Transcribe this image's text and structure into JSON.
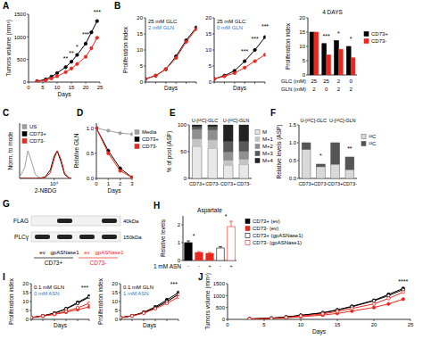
{
  "chart_data": [
    {
      "panel": "A",
      "type": "line",
      "xlabel": "Days",
      "ylabel": "Tumors volume (mm³)",
      "xlim": [
        0,
        25
      ],
      "xticks": [
        0,
        5,
        10,
        15,
        20,
        25
      ],
      "ylim": [
        0,
        1500
      ],
      "yticks": [
        0,
        500,
        1000,
        1500
      ],
      "x": [
        3,
        6,
        8,
        10,
        13,
        15,
        17,
        20,
        22,
        24
      ],
      "series": [
        {
          "color": "#000000",
          "marker": "circle",
          "values": [
            20,
            60,
            120,
            200,
            330,
            450,
            600,
            850,
            1100,
            1350
          ]
        },
        {
          "color": "#e8281e",
          "marker": "circle",
          "values": [
            15,
            40,
            80,
            130,
            220,
            300,
            400,
            560,
            750,
            980
          ]
        }
      ],
      "annotations": [
        {
          "text": "**",
          "x": 13,
          "y": 450
        },
        {
          "text": "**",
          "x": 15,
          "y": 580
        },
        {
          "text": "*",
          "x": 17,
          "y": 720
        },
        {
          "text": "***",
          "x": 20,
          "y": 980
        },
        {
          "text": "***",
          "x": 24,
          "y": 1480
        }
      ]
    },
    {
      "panel": "B",
      "type": "line",
      "xlabel": "Days",
      "ylabel": "Proliferation index",
      "xlim": [
        0,
        5
      ],
      "xticks": [
        0,
        1,
        2,
        3,
        4,
        5
      ],
      "ylim": [
        0,
        20
      ],
      "yticks": [
        0,
        5,
        10,
        15,
        20
      ],
      "tick_labels": "y",
      "x": [
        0,
        1,
        2,
        3,
        4,
        5
      ],
      "subtitle": [
        {
          "text": "25 mM GLC",
          "color": "#000000"
        },
        {
          "text": "2 mM GLN",
          "color": "#1f77d0"
        }
      ],
      "series": [
        {
          "color": "#000000",
          "marker": "circle",
          "values": [
            1,
            2,
            4,
            8,
            13,
            17
          ]
        },
        {
          "color": "#e8281e",
          "marker": "circle",
          "values": [
            1,
            2,
            4,
            7.5,
            12.5,
            16.5
          ]
        }
      ]
    },
    {
      "type": "line",
      "xlabel": "Days",
      "xlim": [
        0,
        5
      ],
      "xticks": [
        0,
        1,
        2,
        3,
        4,
        5
      ],
      "ylim": [
        0,
        20
      ],
      "yticks": [
        0,
        5,
        10,
        15,
        20
      ],
      "tick_labels": "y",
      "x": [
        0,
        1,
        2,
        3,
        4,
        5
      ],
      "subtitle": [
        {
          "text": "25 mM GLC",
          "color": "#000000"
        },
        {
          "text": "0 mM GLN",
          "color": "#1f77d0"
        }
      ],
      "series": [
        {
          "color": "#000000",
          "marker": "circle",
          "values": [
            1,
            2,
            3.5,
            6.5,
            10,
            14
          ]
        },
        {
          "color": "#e8281e",
          "marker": "circle",
          "values": [
            1,
            1.8,
            2.8,
            4.5,
            6.5,
            8.5
          ]
        }
      ],
      "annotations": [
        {
          "text": "***",
          "x": 3,
          "y": 8.5
        },
        {
          "text": "***",
          "x": 4,
          "y": 12.5
        },
        {
          "text": "***",
          "x": 5,
          "y": 16.5
        }
      ]
    },
    {
      "type": "bar",
      "title": "4 DAYS",
      "ylabel": "Proliferation index",
      "ylim": [
        0,
        20
      ],
      "yticks": [
        0,
        5,
        10,
        15,
        20
      ],
      "legend": "right",
      "x_rows": [
        {
          "label": "GLC (mM)",
          "values": [
            "25",
            "25",
            "2",
            "0"
          ]
        },
        {
          "label": "GLN (mM)",
          "values": [
            "2",
            "0",
            "2",
            "2"
          ]
        }
      ],
      "series": [
        {
          "name": "CD73+",
          "color": "#000000",
          "values": [
            15,
            11,
            12,
            10
          ]
        },
        {
          "name": "CD73-",
          "color": "#e8281e",
          "values": [
            15,
            7,
            9,
            6
          ]
        }
      ],
      "annotations": [
        {
          "text": "***",
          "x": 1,
          "y": 12.5
        },
        {
          "text": "*",
          "x": 2,
          "y": 13.5
        },
        {
          "text": "*",
          "x": 3,
          "y": 11.5
        }
      ]
    },
    {
      "panel": "C",
      "type": "line",
      "xlabel": "2-NBDG",
      "ylabel": "Norm. to mode",
      "log": "x",
      "xlim": [
        100,
        100000
      ],
      "xticks": [
        {
          "value": 10000,
          "label": "10⁴"
        }
      ],
      "ylim": [
        0,
        200
      ],
      "tick_labels": "x",
      "legend": "upper left",
      "x": [
        100,
        200,
        300,
        500,
        800,
        1500,
        3000,
        6000,
        10000,
        15000,
        25000,
        40000,
        70000,
        100000
      ],
      "series": [
        {
          "name": "US",
          "color": "#9e9e9e",
          "values": [
            5,
            40,
            100,
            60,
            15,
            2,
            0,
            0,
            0,
            0,
            0,
            0,
            0,
            0
          ]
        },
        {
          "name": "CD73+",
          "color": "#000000",
          "values": [
            0,
            0,
            0,
            0,
            0,
            1,
            5,
            30,
            80,
            100,
            60,
            15,
            2,
            0
          ]
        },
        {
          "name": "CD73-",
          "color": "#e8281e",
          "values": [
            0,
            0,
            0,
            0,
            0,
            0,
            3,
            20,
            70,
            100,
            70,
            20,
            3,
            0
          ]
        }
      ]
    },
    {
      "panel": "D",
      "type": "line",
      "xlabel": "Days",
      "ylabel": "Relative GLN",
      "xlim": [
        0,
        3
      ],
      "xticks": [
        0,
        1,
        2,
        3
      ],
      "ylim": [
        0,
        1.1
      ],
      "yticks": [
        {
          "value": 0,
          "label": "0.0"
        },
        {
          "value": 0.5,
          "label": "0.5"
        },
        {
          "value": 1,
          "label": "1.0"
        }
      ],
      "legend": "right",
      "x": [
        0,
        1,
        2,
        3
      ],
      "series": [
        {
          "name": "Media",
          "color": "#9e9e9e",
          "marker": "circle",
          "values": [
            1,
            0.95,
            0.9,
            0.88
          ]
        },
        {
          "name": "CD73+",
          "color": "#000000",
          "marker": "circle",
          "values": [
            1,
            0.55,
            0.2,
            0.02
          ]
        },
        {
          "name": "CD73-",
          "color": "#e8281e",
          "marker": "circle",
          "values": [
            1,
            0.5,
            0.15,
            0.02
          ]
        }
      ]
    },
    {
      "panel": "E",
      "type": "bar",
      "stacked": true,
      "ylabel": "% of pool (ASP)",
      "ylim": [
        0,
        100
      ],
      "yticks": [
        0,
        50,
        100
      ],
      "categories": [
        "CD73+",
        "CD73-",
        "CD73+",
        "CD73-"
      ],
      "groups": [
        "U-[¹³C]-GLC",
        "U-[¹³C]-GLN"
      ],
      "legend": "right",
      "series": [
        {
          "name": "M",
          "color": "#e8e8e8",
          "values": [
            60,
            56,
            24,
            26
          ]
        },
        {
          "name": "M+1",
          "color": "#c4c4c4",
          "values": [
            14,
            16,
            10,
            10
          ]
        },
        {
          "name": "M+2",
          "color": "#8f8f8f",
          "values": [
            18,
            19,
            16,
            15
          ]
        },
        {
          "name": "M+3",
          "color": "#585858",
          "values": [
            5,
            6,
            20,
            19
          ]
        },
        {
          "name": "M+4",
          "color": "#222222",
          "values": [
            3,
            3,
            30,
            30
          ]
        }
      ]
    },
    {
      "panel": "F",
      "type": "bar",
      "stacked": true,
      "ylabel": "Relative levels (ASP)",
      "ylim": [
        0,
        1.5
      ],
      "yticks": [
        {
          "value": 0,
          "label": "0.0"
        },
        {
          "value": 0.5,
          "label": "0.5"
        },
        {
          "value": 1,
          "label": "1.0"
        },
        {
          "value": 1.5,
          "label": "1.5"
        }
      ],
      "categories": [
        "CD73+",
        "CD73-",
        "CD73+",
        "CD73-"
      ],
      "groups": [
        "U-[¹³C]-GLC",
        "U-[¹³C]-GLN"
      ],
      "legend": "right",
      "series": [
        {
          "name": "¹²C",
          "color": "#d9d9d9",
          "values": [
            0.82,
            0.33,
            0.4,
            0.25
          ]
        },
        {
          "name": "¹³C",
          "color": "#555555",
          "values": [
            0.18,
            0.07,
            0.6,
            0.35
          ]
        }
      ],
      "annotations": [
        {
          "text": "*",
          "x": 1,
          "y": 0.55
        },
        {
          "text": "**",
          "x": 3,
          "y": 0.75
        }
      ]
    },
    {
      "panel": "H",
      "type": "bar",
      "title": "Aspartate",
      "ylabel": "Relative levels",
      "xlabel": "1 mM ASN",
      "ylim": [
        0,
        2.5
      ],
      "yticks": [
        0,
        1,
        2
      ],
      "categories": [
        "-",
        "-",
        "+",
        "-",
        "+"
      ],
      "legend": "right",
      "series": [
        {
          "name": "CD73+ (ev)",
          "color": "#000000",
          "values": [
            1.0,
            null,
            null,
            null,
            null
          ],
          "errors": [
            0.1,
            null,
            null,
            null,
            null
          ]
        },
        {
          "name": "CD73- (ev)",
          "color": "#e8281e",
          "values": [
            null,
            0.45,
            0.4,
            null,
            null
          ],
          "errors": [
            null,
            0.05,
            0.05,
            null,
            null
          ]
        },
        {
          "name": "CD73+ (gpASNase1)",
          "color": "#000000",
          "marker": "open",
          "values": [
            null,
            null,
            null,
            0.7,
            null
          ],
          "errors": [
            null,
            null,
            null,
            0.08,
            null
          ]
        },
        {
          "name": "CD73- (gpASNase1)",
          "color": "#e8281e",
          "marker": "open",
          "values": [
            null,
            null,
            null,
            null,
            1.9
          ],
          "errors": [
            null,
            null,
            null,
            null,
            0.3
          ]
        }
      ],
      "annotations": [
        {
          "text": "*",
          "x": 0.5,
          "y": 1.2
        },
        {
          "text": "*",
          "x": 3.5,
          "y": 2.3
        }
      ]
    },
    {
      "panel": "I",
      "type": "line",
      "xlabel": "Days",
      "ylabel": "Proliferation index",
      "xlim": [
        0,
        5
      ],
      "xticks": [
        0,
        1,
        2,
        3,
        4,
        5
      ],
      "ylim": [
        0,
        20
      ],
      "yticks": [
        0,
        5,
        10,
        15,
        20
      ],
      "tick_labels": "y",
      "x": [
        0,
        1,
        2,
        3,
        4,
        5
      ],
      "subtitle": [
        {
          "text": "0.1 mM GLN",
          "color": "#000000"
        },
        {
          "text": "0 mM ASN",
          "color": "#1f77d0"
        }
      ],
      "series": [
        {
          "color": "#000000",
          "marker": "circle",
          "values": [
            1,
            2,
            3.5,
            6,
            9.5,
            13
          ]
        },
        {
          "color": "#e8281e",
          "marker": "circle",
          "values": [
            1,
            1.8,
            2.8,
            4,
            5.5,
            7
          ]
        },
        {
          "color": "#000000",
          "marker": "open",
          "values": [
            1,
            2,
            3.4,
            5.8,
            9,
            12.5
          ]
        },
        {
          "color": "#e8281e",
          "marker": "open",
          "values": [
            1,
            1.9,
            3,
            4.5,
            6.5,
            9
          ]
        }
      ],
      "annotations": [
        {
          "text": "***",
          "x": 4.6,
          "y": 16
        }
      ]
    },
    {
      "type": "line",
      "xlabel": "Days",
      "ylabel": "Proliferation index",
      "xlim": [
        0,
        5
      ],
      "xticks": [
        0,
        1,
        2,
        3,
        4,
        5
      ],
      "ylim": [
        0,
        20
      ],
      "yticks": [
        0,
        5,
        10,
        15,
        20
      ],
      "tick_labels": "y",
      "x": [
        0,
        1,
        2,
        3,
        4,
        5
      ],
      "subtitle": [
        {
          "text": "0.1 mM GLN",
          "color": "#000000"
        },
        {
          "text": "1 mM ASN",
          "color": "#1f77d0"
        }
      ],
      "series": [
        {
          "color": "#000000",
          "marker": "circle",
          "values": [
            1,
            2,
            4,
            7,
            11,
            15
          ]
        },
        {
          "color": "#e8281e",
          "marker": "circle",
          "values": [
            1,
            2,
            3.8,
            6.5,
            10,
            14
          ]
        },
        {
          "color": "#000000",
          "marker": "open",
          "values": [
            1,
            2,
            3.7,
            6.5,
            10,
            14
          ]
        },
        {
          "color": "#e8281e",
          "marker": "open",
          "values": [
            1,
            1.9,
            3.5,
            6,
            9,
            12.5
          ]
        }
      ],
      "annotations": [
        {
          "text": "***",
          "x": 4.6,
          "y": 18
        }
      ]
    },
    {
      "panel": "J",
      "type": "line",
      "xlabel": "Days",
      "ylabel": "Tumors volume (mm³)",
      "xlim": [
        0,
        25
      ],
      "xticks": [
        0,
        5,
        10,
        15,
        20,
        25
      ],
      "ylim": [
        0,
        1500
      ],
      "yticks": [
        0,
        500,
        1000,
        1500
      ],
      "x": [
        3,
        6,
        8,
        10,
        13,
        15,
        17,
        20,
        22,
        24
      ],
      "series": [
        {
          "color": "#000000",
          "marker": "circle",
          "values": [
            20,
            50,
            100,
            170,
            280,
            400,
            550,
            800,
            1050,
            1300
          ]
        },
        {
          "color": "#e8281e",
          "marker": "circle",
          "values": [
            15,
            35,
            70,
            110,
            180,
            250,
            350,
            500,
            650,
            850
          ]
        },
        {
          "color": "#000000",
          "marker": "open",
          "values": [
            20,
            50,
            100,
            170,
            270,
            390,
            530,
            780,
            1000,
            1250
          ]
        },
        {
          "color": "#e8281e",
          "marker": "open",
          "values": [
            15,
            40,
            80,
            140,
            230,
            330,
            460,
            650,
            880,
            1150
          ]
        }
      ],
      "annotations": [
        {
          "text": "****",
          "x": 24,
          "y": 1450
        }
      ]
    }
  ],
  "blot": {
    "panel": "G",
    "lanes": [
      "ev",
      "gpASNase1",
      "ev",
      "gpASNase1"
    ],
    "lane_colors": [
      "#000000",
      "#000000",
      "#e8281e",
      "#e8281e"
    ],
    "groups": [
      "CD73+",
      "CD73-"
    ],
    "group_colors": [
      "#000000",
      "#e8281e"
    ],
    "rows": [
      {
        "label": "FLAG",
        "size": "40kDa",
        "bands": [
          false,
          true,
          false,
          true
        ]
      },
      {
        "label": "PLCγ",
        "size": "150kDa",
        "bands": [
          true,
          true,
          true,
          true
        ]
      }
    ]
  }
}
